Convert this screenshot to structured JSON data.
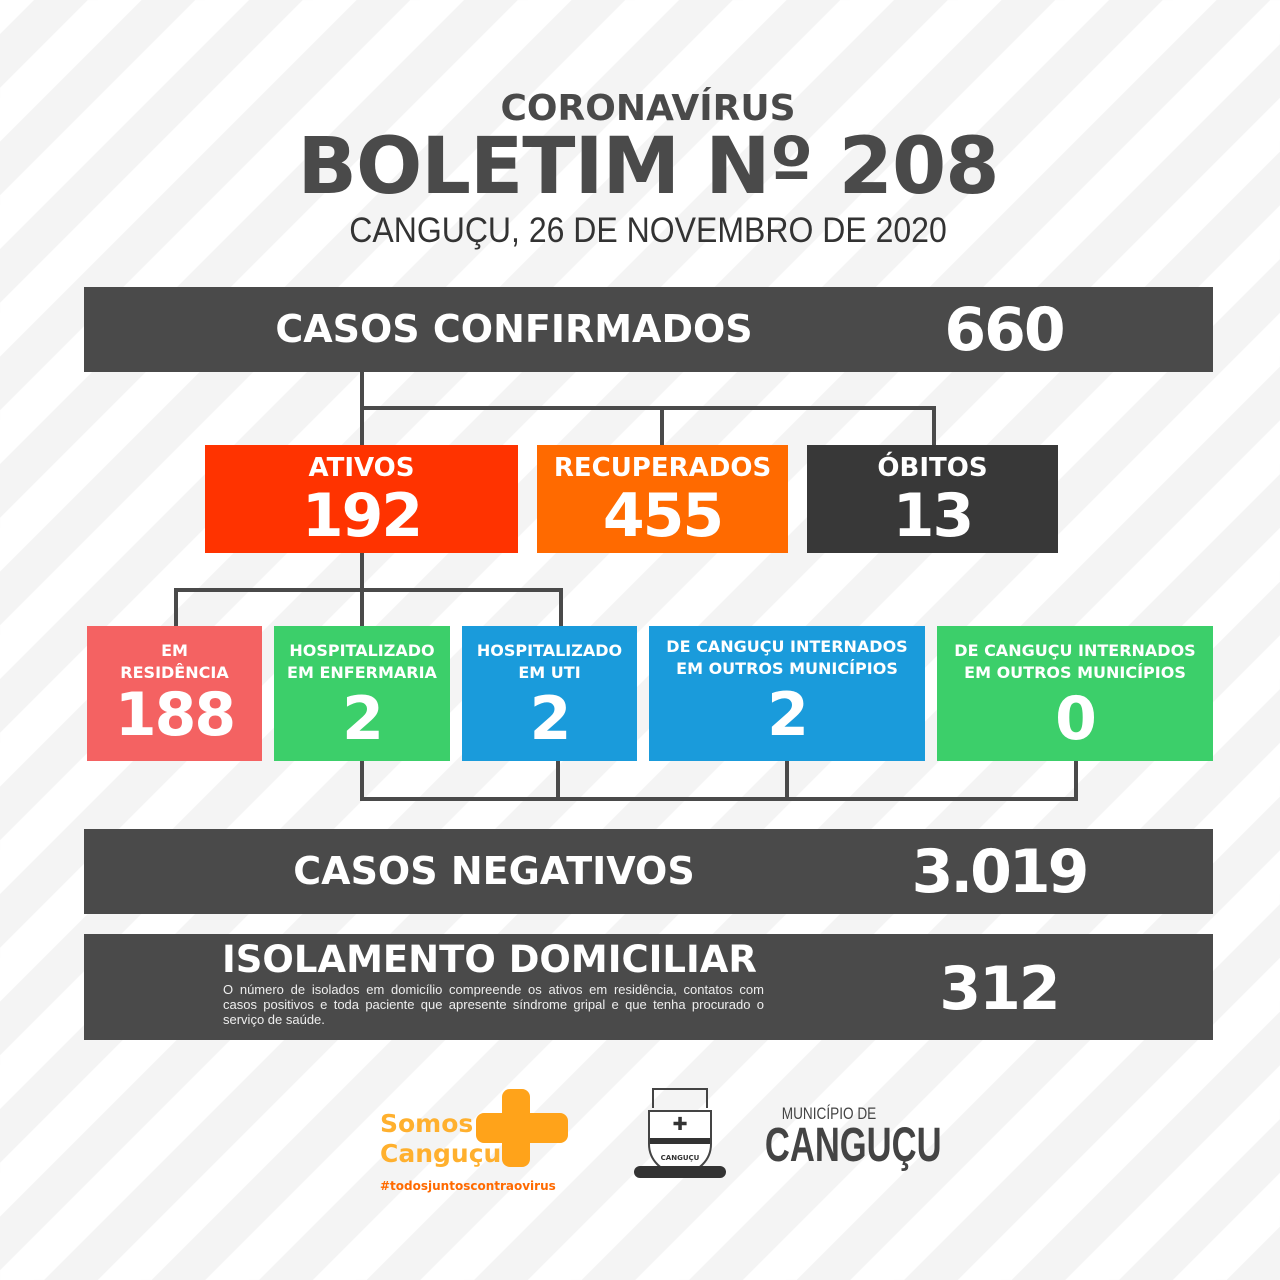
{
  "header": {
    "kicker": "CORONAVÍRUS",
    "title": "BOLETIM Nº 208",
    "date": "CANGUÇU, 26 DE NOVEMBRO DE 2020"
  },
  "confirmed": {
    "label": "CASOS CONFIRMADOS",
    "value": "660"
  },
  "tier1": [
    {
      "label": "ATIVOS",
      "value": "192",
      "color": "#ff3300"
    },
    {
      "label": "RECUPERADOS",
      "value": "455",
      "color": "#ff6a00"
    },
    {
      "label": "ÓBITOS",
      "value": "13",
      "color": "#383838"
    }
  ],
  "tier2": [
    {
      "label": "EM RESIDÊNCIA",
      "value": "188",
      "color": "#f46262"
    },
    {
      "label": "HOSPITALIZADO EM ENFERMARIA",
      "value": "2",
      "color": "#3ccf6a"
    },
    {
      "label": "HOSPITALIZADO EM UTI",
      "value": "2",
      "color": "#1a9bdb"
    },
    {
      "label": "DE CANGUÇU INTERNADOS EM OUTROS MUNICÍPIOS",
      "value": "2",
      "color": "#1a9bdb"
    },
    {
      "label": "DE CANGUÇU INTERNADOS EM OUTROS MUNICÍPIOS",
      "value": "0",
      "color": "#3ccf6a"
    }
  ],
  "negatives": {
    "label": "CASOS NEGATIVOS",
    "value": "3.019"
  },
  "isolation": {
    "label": "ISOLAMENTO DOMICILIAR",
    "value": "312",
    "note": "O número de isolados em domicílio compreende os ativos em residência, contatos com casos positivos e toda paciente que apresente síndrome gripal e que tenha procurado o serviço de saúde."
  },
  "footer": {
    "campaign_line1": "Somos",
    "campaign_line2": "Canguçu",
    "hashtag": "#todosjuntoscontraovirus",
    "crest_text": "CANGUÇU",
    "municipality_small": "MUNICÍPIO DE",
    "municipality_big": "CANGUÇU",
    "accent": "#ffb02e"
  }
}
